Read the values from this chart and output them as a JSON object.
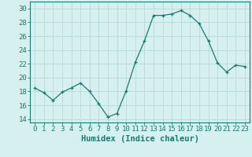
{
  "x": [
    0,
    1,
    2,
    3,
    4,
    5,
    6,
    7,
    8,
    9,
    10,
    11,
    12,
    13,
    14,
    15,
    16,
    17,
    18,
    19,
    20,
    21,
    22,
    23
  ],
  "y": [
    18.5,
    17.8,
    16.7,
    17.9,
    18.5,
    19.2,
    18.0,
    16.2,
    14.3,
    14.8,
    18.1,
    22.2,
    25.3,
    29.0,
    29.0,
    29.2,
    29.7,
    29.0,
    27.8,
    25.3,
    22.1,
    20.8,
    21.8,
    21.6
  ],
  "line_color": "#1a7a6e",
  "marker": "+",
  "bg_color": "#d6f0f0",
  "grid_color": "#b8d8d8",
  "xlabel": "Humidex (Indice chaleur)",
  "ylabel_ticks": [
    14,
    16,
    18,
    20,
    22,
    24,
    26,
    28,
    30
  ],
  "ylim": [
    13.5,
    31.0
  ],
  "xlim": [
    -0.5,
    23.5
  ],
  "tick_label_color": "#1a7a6e",
  "xlabel_color": "#1a7a6e",
  "tick_fontsize": 6.5,
  "xlabel_fontsize": 7.5
}
